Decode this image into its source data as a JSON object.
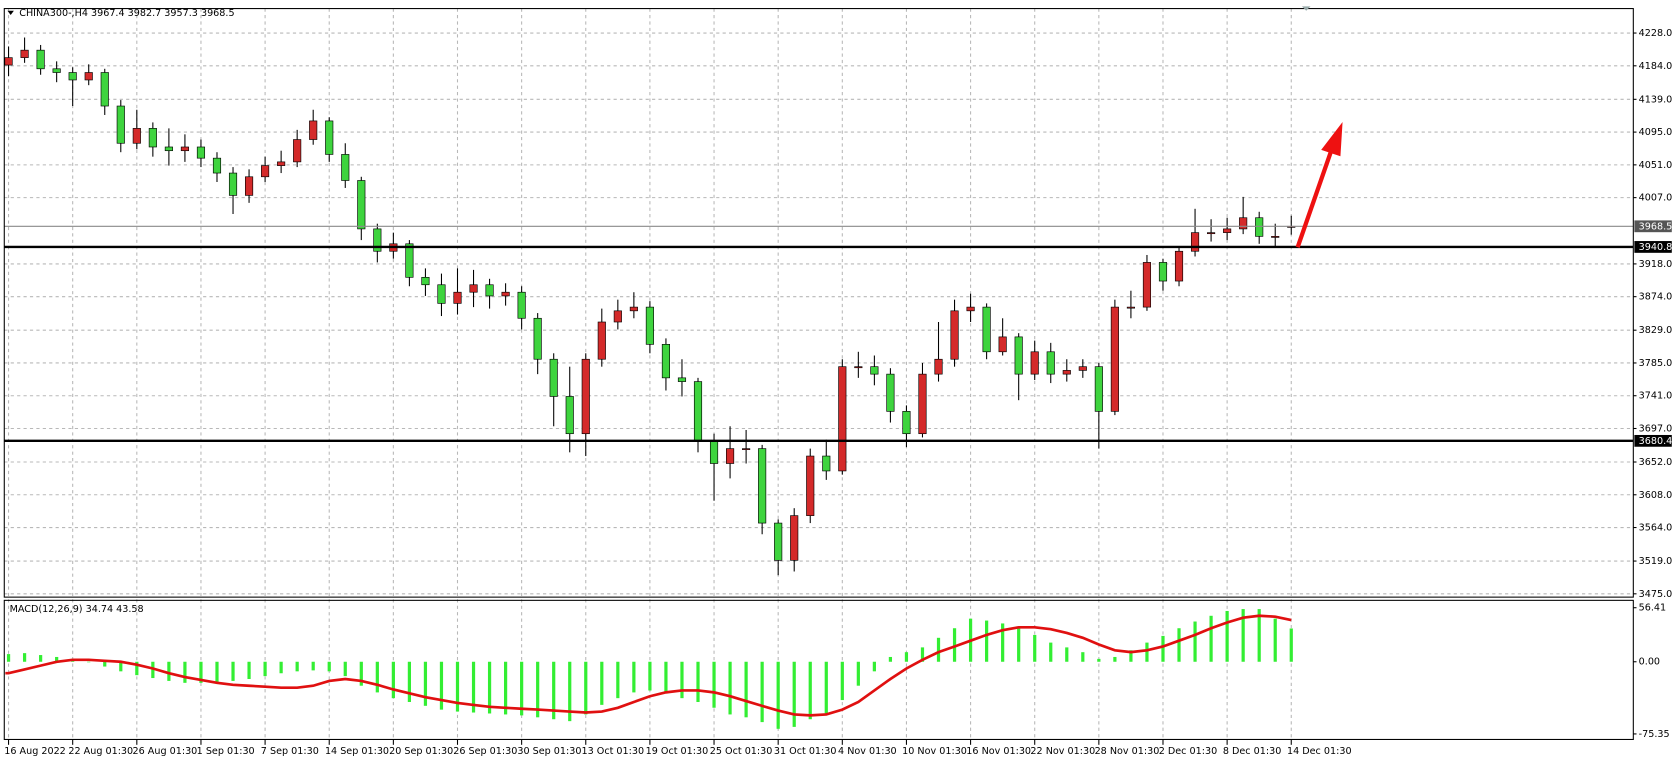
{
  "chart_data": [
    {
      "type": "candlestick",
      "title": "CHINA300-,H4  3967.4 3982.7 3957.3 3968.5",
      "categories": [
        "16 Aug 2022",
        null,
        null,
        null,
        "22 Aug 01:30",
        null,
        null,
        null,
        "26 Aug 01:30",
        null,
        null,
        null,
        "1 Sep 01:30",
        null,
        null,
        null,
        "7 Sep 01:30",
        null,
        null,
        null,
        "14 Sep 01:30",
        null,
        null,
        null,
        "20 Sep 01:30",
        null,
        null,
        null,
        "26 Sep 01:30",
        null,
        null,
        null,
        "30 Sep 01:30",
        null,
        null,
        null,
        "13 Oct 01:30",
        null,
        null,
        null,
        "19 Oct 01:30",
        null,
        null,
        null,
        "25 Oct 01:30",
        null,
        null,
        null,
        "31 Oct 01:30",
        null,
        null,
        null,
        "4 Nov 01:30",
        null,
        null,
        null,
        "10 Nov 01:30",
        null,
        null,
        null,
        "16 Nov 01:30",
        null,
        null,
        null,
        "22 Nov 01:30",
        null,
        null,
        null,
        "28 Nov 01:30",
        null,
        null,
        null,
        "2 Dec 01:30",
        null,
        null,
        null,
        "8 Dec 01:30",
        null,
        null,
        null,
        "14 Dec 01:30"
      ],
      "open": [
        4185,
        4195,
        4205,
        4180,
        4175,
        4165,
        4175,
        4130,
        4080,
        4100,
        4075,
        4070,
        4075,
        4060,
        4040,
        4010,
        4035,
        4050,
        4055,
        4085,
        4110,
        4065,
        4030,
        3965,
        3935,
        3945,
        3900,
        3890,
        3865,
        3880,
        3890,
        3875,
        3880,
        3845,
        3790,
        3740,
        3690,
        3790,
        3840,
        3855,
        3860,
        3810,
        3765,
        3760,
        3680,
        3650,
        3670,
        3670,
        3570,
        3520,
        3580,
        3660,
        3640,
        3780,
        3780,
        3770,
        3720,
        3690,
        3770,
        3790,
        3855,
        3860,
        3800,
        3820,
        3770,
        3800,
        3770,
        3775,
        3780,
        3720,
        3860,
        3860,
        3920,
        3895,
        3935,
        3960,
        3960,
        3965,
        3980,
        3955,
        3967.4
      ],
      "high": [
        4210,
        4222,
        4212,
        4190,
        4182,
        4186,
        4180,
        4138,
        4125,
        4108,
        4100,
        4092,
        4085,
        4068,
        4048,
        4045,
        4062,
        4070,
        4098,
        4125,
        4115,
        4080,
        4035,
        3972,
        3960,
        3950,
        3912,
        3905,
        3912,
        3910,
        3898,
        3892,
        3888,
        3852,
        3798,
        3780,
        3798,
        3858,
        3870,
        3880,
        3868,
        3818,
        3790,
        3765,
        3690,
        3700,
        3695,
        3675,
        3575,
        3590,
        3670,
        3682,
        3790,
        3800,
        3795,
        3778,
        3728,
        3785,
        3840,
        3870,
        3878,
        3865,
        3845,
        3825,
        3815,
        3812,
        3790,
        3790,
        3785,
        3870,
        3882,
        3930,
        3925,
        3942,
        3992,
        3978,
        3980,
        4008,
        3988,
        3972,
        3982.7
      ],
      "low": [
        4170,
        4188,
        4172,
        4162,
        4130,
        4158,
        4118,
        4068,
        4072,
        4062,
        4050,
        4055,
        4048,
        4028,
        3985,
        4000,
        4028,
        4040,
        4048,
        4078,
        4055,
        4020,
        3950,
        3920,
        3925,
        3888,
        3875,
        3848,
        3850,
        3860,
        3858,
        3862,
        3830,
        3770,
        3700,
        3665,
        3660,
        3780,
        3830,
        3845,
        3798,
        3748,
        3740,
        3665,
        3600,
        3630,
        3650,
        3555,
        3500,
        3505,
        3570,
        3628,
        3635,
        3765,
        3755,
        3705,
        3672,
        3685,
        3760,
        3780,
        3840,
        3790,
        3795,
        3735,
        3762,
        3758,
        3760,
        3765,
        3670,
        3715,
        3845,
        3855,
        3882,
        3888,
        3928,
        3948,
        3950,
        3958,
        3945,
        3940,
        3957.3
      ],
      "close": [
        4195,
        4205,
        4180,
        4175,
        4165,
        4175,
        4130,
        4080,
        4100,
        4075,
        4070,
        4075,
        4060,
        4040,
        4010,
        4035,
        4050,
        4055,
        4085,
        4110,
        4065,
        4030,
        3965,
        3935,
        3945,
        3900,
        3890,
        3865,
        3880,
        3890,
        3875,
        3880,
        3845,
        3790,
        3740,
        3690,
        3790,
        3840,
        3855,
        3860,
        3810,
        3765,
        3760,
        3680,
        3650,
        3670,
        3670,
        3570,
        3520,
        3580,
        3660,
        3640,
        3780,
        3780,
        3770,
        3720,
        3690,
        3770,
        3790,
        3855,
        3860,
        3800,
        3820,
        3770,
        3800,
        3770,
        3775,
        3780,
        3720,
        3860,
        3860,
        3920,
        3895,
        3935,
        3960,
        3960,
        3965,
        3980,
        3955,
        3955,
        3968.5
      ],
      "up_color": "#d42a2a",
      "down_color": "#3ed43e",
      "wick_color": "#000000",
      "ylim": [
        3472,
        4258
      ],
      "yticks": [
        {
          "value": 4228,
          "label": "4228.0"
        },
        {
          "value": 4184,
          "label": "4184.0"
        },
        {
          "value": 4139,
          "label": "4139.0"
        },
        {
          "value": 4095,
          "label": "4095.0"
        },
        {
          "value": 4051,
          "label": "4051.0"
        },
        {
          "value": 4007,
          "label": "4007.0"
        },
        {
          "value": 3918,
          "label": "3918.0"
        },
        {
          "value": 3874,
          "label": "3874.0"
        },
        {
          "value": 3829,
          "label": "3829.0"
        },
        {
          "value": 3785,
          "label": "3785.0"
        },
        {
          "value": 3741,
          "label": "3741.0"
        },
        {
          "value": 3697,
          "label": "3697.0"
        },
        {
          "value": 3652,
          "label": "3652.0"
        },
        {
          "value": 3608,
          "label": "3608.0"
        },
        {
          "value": 3564,
          "label": "3564.0"
        },
        {
          "value": 3519,
          "label": "3519.0"
        },
        {
          "value": 3475,
          "label": "3475.0"
        }
      ],
      "levels": [
        3940.8,
        3680.4
      ],
      "level_color": "#000000",
      "last_price": 3968.5,
      "grid": true
    },
    {
      "type": "macd",
      "title": "MACD(12,26,9) 34.74 43.58",
      "histogram": {
        "color": "#33ee33",
        "values": [
          8,
          9,
          7,
          5,
          3,
          0,
          -5,
          -10,
          -14,
          -17,
          -20,
          -22,
          -22,
          -21,
          -20,
          -18,
          -15,
          -12,
          -10,
          -9,
          -10,
          -15,
          -25,
          -32,
          -38,
          -42,
          -46,
          -50,
          -52,
          -53,
          -54,
          -55,
          -56,
          -58,
          -60,
          -62,
          -55,
          -45,
          -38,
          -32,
          -30,
          -33,
          -38,
          -42,
          -48,
          -55,
          -58,
          -63,
          -70,
          -68,
          -60,
          -55,
          -40,
          -25,
          -10,
          5,
          10,
          15,
          25,
          35,
          45,
          43,
          40,
          35,
          28,
          20,
          15,
          10,
          3,
          5,
          12,
          20,
          27,
          35,
          42,
          48,
          53,
          55,
          55,
          45,
          34.74
        ]
      },
      "signal": {
        "color": "#e01010",
        "values": [
          -12,
          -8,
          -4,
          0,
          2,
          2,
          1,
          0,
          -3,
          -7,
          -12,
          -16,
          -19,
          -22,
          -24,
          -25,
          -26,
          -27,
          -27,
          -25,
          -20,
          -18,
          -20,
          -24,
          -29,
          -33,
          -37,
          -40,
          -43,
          -45,
          -47,
          -48,
          -49,
          -50,
          -51,
          -52,
          -53,
          -52,
          -48,
          -42,
          -36,
          -32,
          -30,
          -30,
          -32,
          -36,
          -41,
          -46,
          -51,
          -55,
          -56,
          -55,
          -50,
          -42,
          -30,
          -18,
          -7,
          2,
          10,
          16,
          22,
          28,
          33,
          36,
          36,
          34,
          30,
          25,
          18,
          12,
          10,
          12,
          16,
          22,
          28,
          35,
          41,
          46,
          48,
          47,
          43.58
        ]
      },
      "ylim": [
        -80,
        63
      ],
      "yticks": [
        56.41,
        {
          "value": 0,
          "label": "0.00"
        },
        -75.35
      ]
    }
  ]
}
